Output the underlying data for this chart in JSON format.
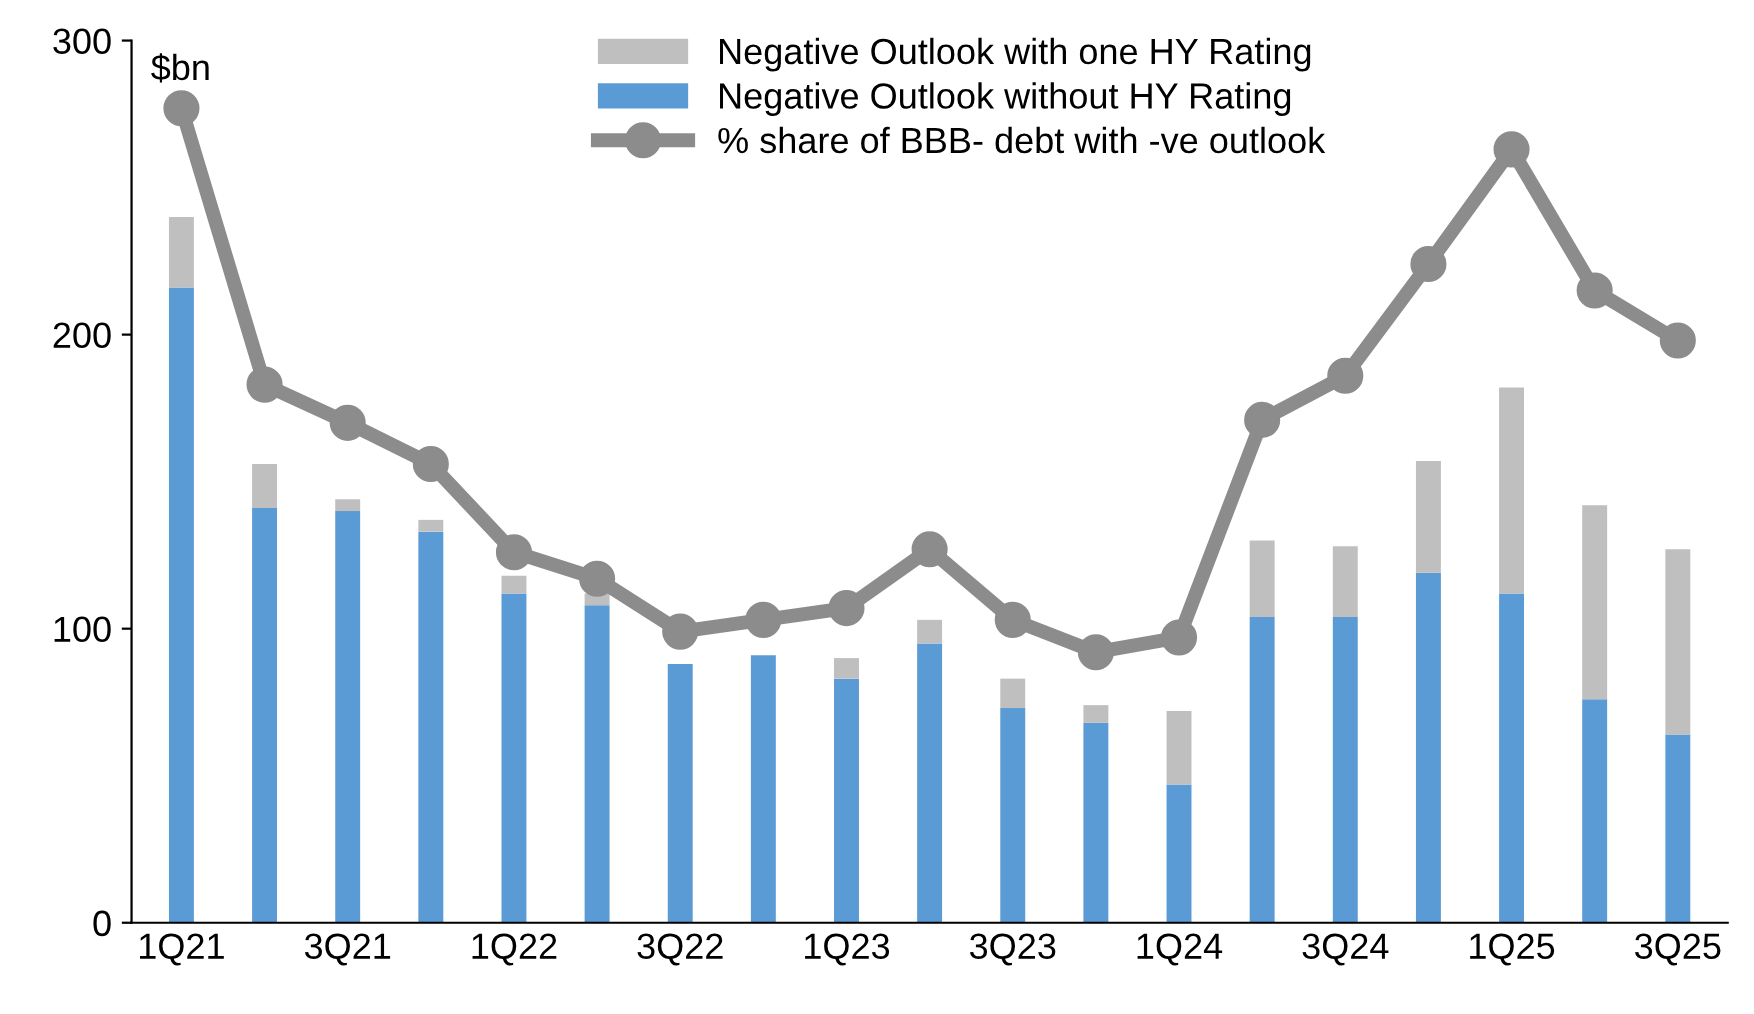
{
  "chart_data": {
    "type": "bar",
    "stacked": true,
    "categories": [
      "1Q21",
      null,
      "3Q21",
      null,
      "1Q22",
      null,
      "3Q22",
      null,
      "1Q23",
      null,
      "3Q23",
      null,
      "1Q24",
      null,
      "3Q24",
      null,
      "1Q25",
      null,
      "3Q25"
    ],
    "series": [
      {
        "name": "Negative Outlook without HY Rating",
        "color": "#5b9bd5",
        "values": [
          216,
          141,
          140,
          133,
          112,
          108,
          88,
          91,
          83,
          95,
          73,
          68,
          47,
          104,
          104,
          119,
          112,
          76,
          64
        ]
      },
      {
        "name": "Negative Outlook with one HY Rating",
        "color": "#bfbfbf",
        "values": [
          24,
          15,
          4,
          4,
          6,
          4,
          null,
          null,
          7,
          8,
          10,
          6,
          25,
          26,
          24,
          38,
          70,
          66,
          63
        ]
      },
      {
        "name": "% share of BBB- debt with -ve outlook",
        "type": "line",
        "color": "#8c8c8c",
        "values": [
          277,
          183,
          170,
          156,
          126,
          117,
          99,
          103,
          107,
          127,
          103,
          92,
          97,
          171,
          186,
          224,
          263,
          215,
          198
        ]
      }
    ],
    "annotations": [
      "$bn"
    ],
    "ylim": [
      0,
      300
    ],
    "yticks": [
      0,
      100,
      200,
      300
    ],
    "marker": "circle",
    "line_style": "solid",
    "grid": false,
    "legend": "top"
  }
}
